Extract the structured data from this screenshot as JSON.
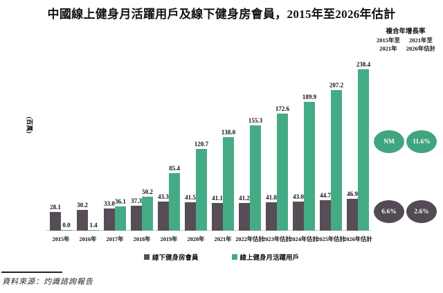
{
  "title": "中國線上健身月活躍用戶及線下健身房會員，2015年至2026年估計",
  "y_axis_label": "(百萬)",
  "cagr": {
    "header": "複合年增長率",
    "columns": [
      {
        "line1": "2015年至",
        "line2": "2021年"
      },
      {
        "line1": "2021年至",
        "line2": "2026年估計"
      }
    ],
    "online_values": [
      "NM",
      "11.6%"
    ],
    "offline_values": [
      "6.6%",
      "2.6%"
    ]
  },
  "legend": [
    {
      "label": "線下健身房會員",
      "color": "#574d57"
    },
    {
      "label": "線上健身月活躍用戶",
      "color": "#45ab85"
    }
  ],
  "source": "資料來源：灼識諮詢報告",
  "colors": {
    "offline_bar": "#574d57",
    "online_bar": "#45ab85",
    "offline_oval": "#534a53",
    "online_oval": "#3fa57e",
    "axis_line": "#c9c9c9"
  },
  "chart_data": {
    "type": "bar",
    "categories": [
      "2015年",
      "2016年",
      "2017年",
      "2018年",
      "2019年",
      "2020年",
      "2021年",
      "2022年估計",
      "2023年估計",
      "2024年估計",
      "2025年估計",
      "2026年估計"
    ],
    "series": [
      {
        "name": "線下健身房會員",
        "color": "#574d57",
        "values": [
          28.1,
          30.2,
          33.0,
          37.3,
          43.3,
          41.5,
          41.1,
          41.2,
          41.8,
          43.0,
          44.7,
          46.9
        ]
      },
      {
        "name": "線上健身月活躍用戶",
        "color": "#45ab85",
        "values": [
          0.0,
          1.4,
          36.1,
          50.2,
          85.4,
          120.7,
          138.0,
          155.3,
          172.6,
          189.9,
          207.2,
          238.4
        ]
      }
    ],
    "title": "中國線上健身月活躍用戶及線下健身房會員，2015年至2026年估計",
    "xlabel": "",
    "ylabel": "(百萬)",
    "ylim": [
      0,
      250
    ],
    "grid": false,
    "legend_position": "bottom",
    "value_labels": true
  }
}
